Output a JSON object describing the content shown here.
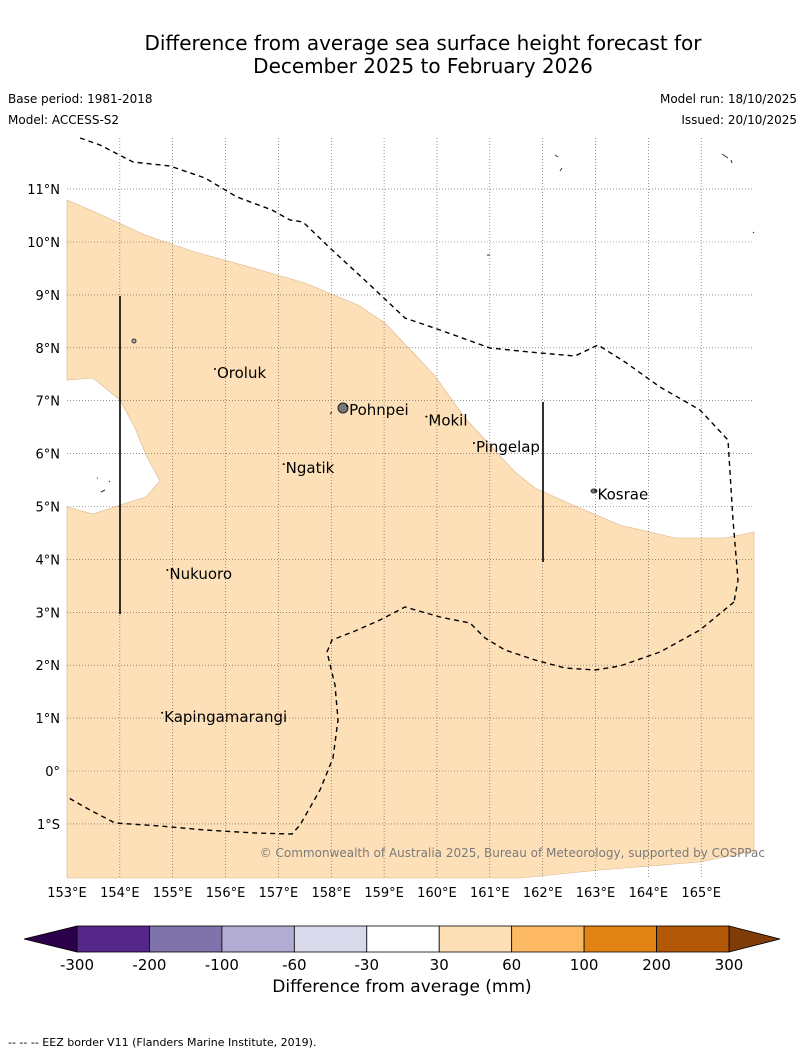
{
  "title_line1": "Difference from average sea surface height forecast for",
  "title_line2": "December 2025 to February 2026",
  "base_period": "Base period: 1981-2018",
  "model": "Model: ACCESS-S2",
  "model_run": "Model run: 18/10/2025",
  "issued": "Issued: 20/10/2025",
  "copyright": "© Commonwealth of Australia 2025, Bureau of Meteorology, supported by COSPPac",
  "footnote": "--  --  -- EEZ border V11 (Flanders Marine Institute, 2019).",
  "map": {
    "lon_range": [
      153,
      166
    ],
    "lat_range": [
      -2,
      12
    ],
    "lon_ticks": [
      "153°E",
      "154°E",
      "155°E",
      "156°E",
      "157°E",
      "158°E",
      "159°E",
      "160°E",
      "161°E",
      "162°E",
      "163°E",
      "164°E",
      "165°E"
    ],
    "lat_ticks": [
      "11°N",
      "10°N",
      "9°N",
      "8°N",
      "7°N",
      "6°N",
      "5°N",
      "4°N",
      "3°N",
      "2°N",
      "1°N",
      "0°",
      "1°S"
    ],
    "places": [
      {
        "name": "Oroluk",
        "lon": 155.8,
        "lat": 7.6
      },
      {
        "name": "Pohnpei",
        "lon": 158.3,
        "lat": 6.9
      },
      {
        "name": "Mokil",
        "lon": 159.8,
        "lat": 6.7
      },
      {
        "name": "Pingelap",
        "lon": 160.7,
        "lat": 6.2
      },
      {
        "name": "Ngatik",
        "lon": 157.1,
        "lat": 5.8
      },
      {
        "name": "Kosrae",
        "lon": 163.0,
        "lat": 5.3
      },
      {
        "name": "Nukuoro",
        "lon": 154.9,
        "lat": 3.8
      },
      {
        "name": "Kapingamarangi",
        "lon": 154.8,
        "lat": 1.1
      }
    ],
    "fill_color": "#fde0b8",
    "fill_category": "30 to 60"
  },
  "colorbar": {
    "label": "Difference from average (mm)",
    "ticks": [
      "-300",
      "-200",
      "-100",
      "-60",
      "-30",
      "30",
      "60",
      "100",
      "200",
      "300"
    ],
    "colors": [
      "#542788",
      "#8073ac",
      "#b2abd2",
      "#d8daeb",
      "#ffffff",
      "#fee0b6",
      "#fdb863",
      "#e08214",
      "#b35806"
    ],
    "under_color": "#2d004b",
    "over_color": "#7f3b08"
  }
}
